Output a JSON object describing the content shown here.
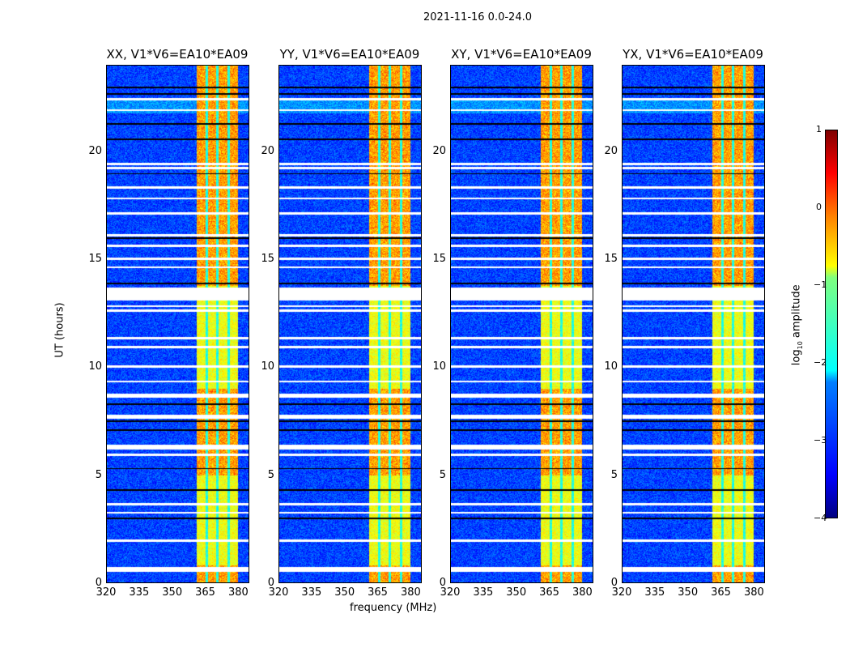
{
  "chart_data": {
    "type": "heatmap",
    "title": "2021-11-16 0.0-24.0",
    "xlabel": "frequency (MHz)",
    "ylabel": "UT (hours)",
    "xlim": [
      320,
      385
    ],
    "ylim": [
      0,
      24
    ],
    "xticks": [
      "320",
      "335",
      "350",
      "365",
      "380"
    ],
    "yticks": [
      "0",
      "5",
      "10",
      "15",
      "20"
    ],
    "panels": [
      {
        "title": "XX, V1*V6=EA10*EA09"
      },
      {
        "title": "YY, V1*V6=EA10*EA09"
      },
      {
        "title": "XY, V1*V6=EA10*EA09"
      },
      {
        "title": "YX, V1*V6=EA10*EA09"
      }
    ],
    "bright_band_mhz": [
      361,
      380
    ],
    "flagged_ut_hours": [
      [
        22.4,
        22.5
      ],
      [
        21.9,
        22.0
      ],
      [
        19.4,
        19.5
      ],
      [
        19.2,
        19.3
      ],
      [
        18.3,
        18.4
      ],
      [
        17.8,
        17.9
      ],
      [
        17.1,
        17.2
      ],
      [
        16.1,
        16.2
      ],
      [
        15.6,
        15.7
      ],
      [
        15.0,
        15.1
      ],
      [
        14.6,
        14.7
      ],
      [
        13.1,
        13.7
      ],
      [
        12.8,
        12.9
      ],
      [
        12.6,
        12.7
      ],
      [
        11.3,
        11.4
      ],
      [
        10.9,
        11.0
      ],
      [
        10.0,
        10.1
      ],
      [
        9.3,
        9.4
      ],
      [
        8.6,
        8.8
      ],
      [
        7.6,
        7.8
      ],
      [
        6.2,
        6.4
      ],
      [
        5.9,
        6.0
      ],
      [
        3.6,
        3.7
      ],
      [
        3.2,
        3.3
      ],
      [
        1.9,
        2.0
      ],
      [
        0.5,
        0.75
      ]
    ],
    "black_lines_ut_hours": [
      23.0,
      22.7,
      21.3,
      20.6,
      19.0,
      16.0,
      13.9,
      8.3,
      7.5,
      7.1,
      5.3,
      4.3,
      3.0
    ],
    "colorbar": {
      "label": "log10 amplitude",
      "label_main": "log",
      "label_sub": "10",
      "label_rest": " amplitude",
      "range": [
        -4,
        1
      ],
      "ticks": [
        "1",
        "0",
        "−1",
        "−2",
        "−3",
        "−4"
      ],
      "colormap": "jet"
    }
  }
}
